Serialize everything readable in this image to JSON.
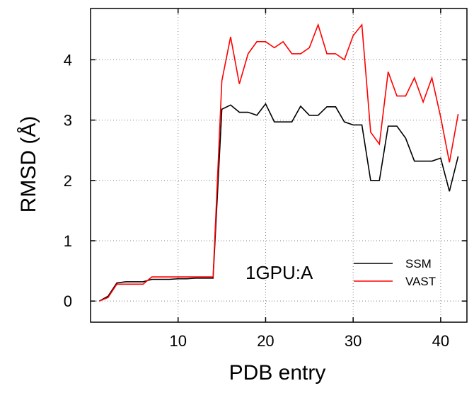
{
  "chart_data": {
    "type": "line",
    "xlabel": "PDB entry",
    "ylabel": "RMSD (Å)",
    "xlim": [
      0,
      43
    ],
    "ylim": [
      -0.35,
      4.85
    ],
    "xticks": [
      10,
      20,
      30,
      40
    ],
    "yticks": [
      0,
      1,
      2,
      3,
      4
    ],
    "grid": true,
    "annotation": "1GPU:A",
    "legend_position": "bottom-right inside plot",
    "x": [
      1,
      2,
      3,
      4,
      5,
      6,
      7,
      8,
      9,
      10,
      11,
      12,
      13,
      14,
      15,
      16,
      17,
      18,
      19,
      20,
      21,
      22,
      23,
      24,
      25,
      26,
      27,
      28,
      29,
      30,
      31,
      32,
      33,
      34,
      35,
      36,
      37,
      38,
      39,
      40,
      41,
      42
    ],
    "series": [
      {
        "name": "SSM",
        "color": "#000000",
        "values": [
          0.0,
          0.08,
          0.3,
          0.32,
          0.32,
          0.32,
          0.36,
          0.36,
          0.36,
          0.37,
          0.37,
          0.38,
          0.38,
          0.38,
          3.18,
          3.25,
          3.13,
          3.13,
          3.08,
          3.27,
          2.97,
          2.97,
          2.97,
          3.23,
          3.08,
          3.08,
          3.22,
          3.22,
          2.97,
          2.92,
          2.92,
          2.0,
          2.0,
          2.9,
          2.9,
          2.7,
          2.32,
          2.32,
          2.32,
          2.37,
          1.82,
          2.4
        ]
      },
      {
        "name": "VAST",
        "color": "#ff0000",
        "values": [
          0.0,
          0.06,
          0.28,
          0.28,
          0.28,
          0.28,
          0.4,
          0.4,
          0.4,
          0.4,
          0.4,
          0.4,
          0.4,
          0.4,
          3.65,
          4.38,
          3.6,
          4.1,
          4.3,
          4.3,
          4.2,
          4.3,
          4.1,
          4.1,
          4.2,
          4.58,
          4.1,
          4.1,
          4.0,
          4.4,
          4.58,
          2.8,
          2.6,
          3.8,
          3.4,
          3.4,
          3.7,
          3.3,
          3.7,
          3.05,
          2.3,
          3.1
        ]
      }
    ]
  }
}
